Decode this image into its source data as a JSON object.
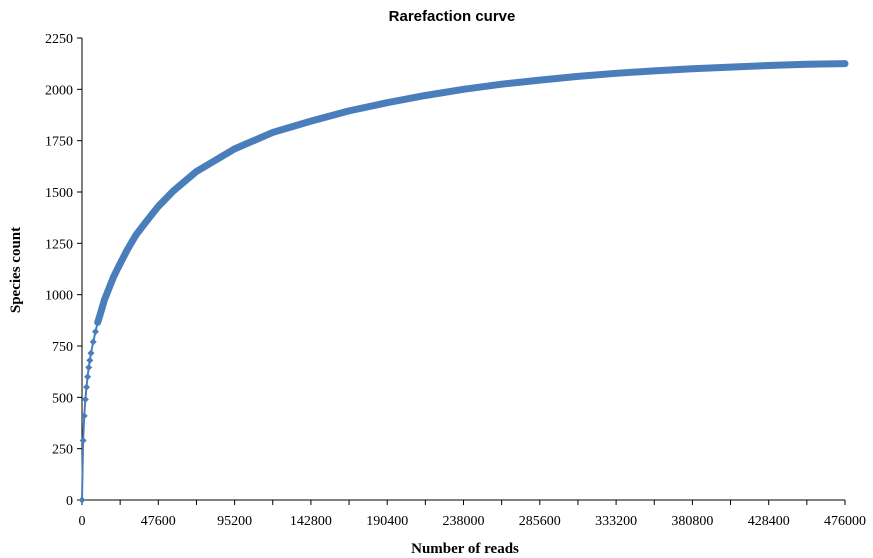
{
  "chart_data": {
    "type": "line",
    "title": "Rarefaction curve",
    "xlabel": "Number of reads",
    "ylabel": "Species count",
    "xlim": [
      0,
      476000
    ],
    "ylim": [
      0,
      2250
    ],
    "x_ticks": [
      "0",
      "47600",
      "95200",
      "142800",
      "190400",
      "238000",
      "285600",
      "333200",
      "380800",
      "428400",
      "476000"
    ],
    "y_ticks": [
      "0",
      "250",
      "500",
      "750",
      "1000",
      "1250",
      "1500",
      "1750",
      "2000",
      "2250"
    ],
    "grid": false,
    "legend": "none",
    "color": "#4a7ebb",
    "marker": "diamond",
    "series": [
      {
        "x": [
          0,
          700,
          1400,
          2100,
          2800,
          3500,
          4200,
          4900,
          5600,
          7000,
          8400,
          9800,
          11200,
          14000,
          16800,
          19600,
          22400,
          28000,
          33600,
          40000,
          47600,
          57000,
          71400,
          95200,
          119000,
          142800,
          166600,
          190400,
          214200,
          238000,
          261800,
          285600,
          309400,
          333200,
          357000,
          380800,
          404600,
          428400,
          452200,
          476000
        ],
        "y": [
          0,
          290,
          410,
          490,
          550,
          600,
          645,
          680,
          715,
          770,
          820,
          865,
          900,
          975,
          1030,
          1085,
          1130,
          1215,
          1290,
          1355,
          1430,
          1505,
          1600,
          1710,
          1790,
          1845,
          1895,
          1935,
          1970,
          2000,
          2025,
          2045,
          2063,
          2078,
          2090,
          2100,
          2108,
          2116,
          2122,
          2125
        ]
      }
    ]
  }
}
